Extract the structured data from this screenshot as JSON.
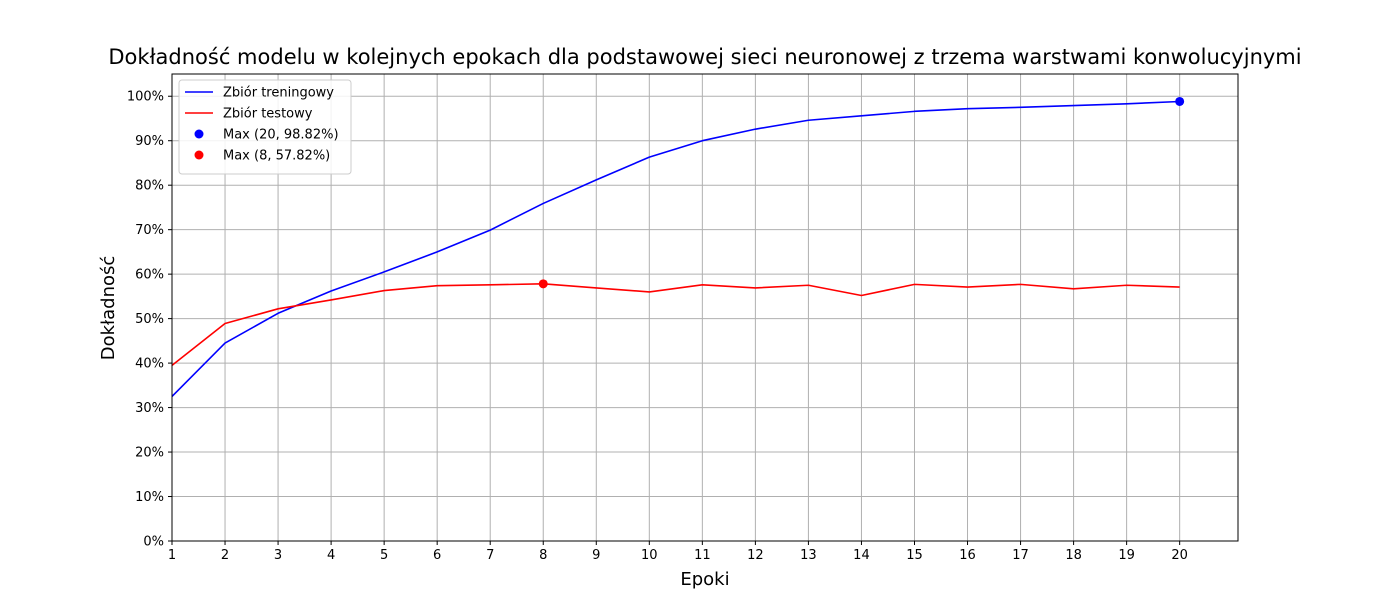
{
  "chart_data": {
    "type": "line",
    "title": "Dokładność modelu w kolejnych epokach dla podstawowej sieci neuronowej z trzema warstwami konwolucyjnymi",
    "xlabel": "Epoki",
    "ylabel": "Dokładność",
    "x": [
      1,
      2,
      3,
      4,
      5,
      6,
      7,
      8,
      9,
      10,
      11,
      12,
      13,
      14,
      15,
      16,
      17,
      18,
      19,
      20
    ],
    "x_ticks": [
      "1",
      "2",
      "3",
      "4",
      "5",
      "6",
      "7",
      "8",
      "9",
      "10",
      "11",
      "12",
      "13",
      "14",
      "15",
      "16",
      "17",
      "18",
      "19",
      "20"
    ],
    "xlim": [
      1,
      21.1
    ],
    "ylim": [
      0,
      1.05
    ],
    "y_ticks": [
      0,
      0.1,
      0.2,
      0.3,
      0.4,
      0.5,
      0.6,
      0.7,
      0.8,
      0.9,
      1.0
    ],
    "y_tick_labels": [
      "0%",
      "10%",
      "20%",
      "30%",
      "40%",
      "50%",
      "60%",
      "70%",
      "80%",
      "90%",
      "100%"
    ],
    "grid": true,
    "legend_position": "top-left",
    "series": [
      {
        "name": "Zbiór treningowy",
        "color": "#0000ff",
        "values": [
          0.325,
          0.445,
          0.512,
          0.562,
          0.605,
          0.65,
          0.699,
          0.759,
          0.812,
          0.863,
          0.9,
          0.926,
          0.946,
          0.956,
          0.966,
          0.972,
          0.975,
          0.979,
          0.983,
          0.9882
        ]
      },
      {
        "name": "Zbiór testowy",
        "color": "#ff0000",
        "values": [
          0.395,
          0.489,
          0.522,
          0.542,
          0.563,
          0.574,
          0.576,
          0.5782,
          0.569,
          0.56,
          0.576,
          0.569,
          0.575,
          0.552,
          0.577,
          0.571,
          0.577,
          0.567,
          0.575,
          0.571
        ]
      }
    ],
    "markers": [
      {
        "label": "Max (20, 98.82%)",
        "x": 20,
        "y": 0.9882,
        "color": "#0000ff"
      },
      {
        "label": "Max (8, 57.82%)",
        "x": 8,
        "y": 0.5782,
        "color": "#ff0000"
      }
    ]
  }
}
